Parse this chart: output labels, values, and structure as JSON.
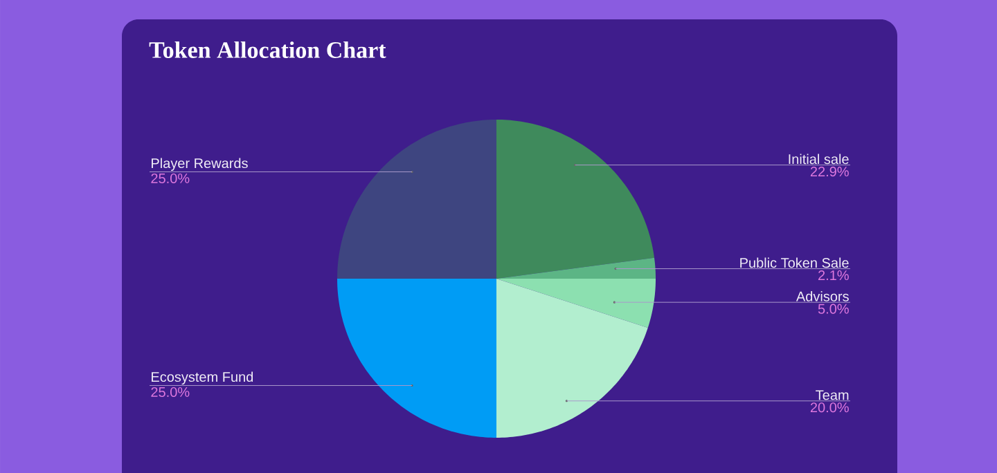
{
  "chart_data": {
    "type": "pie",
    "title": "Token Allocation Chart",
    "categories": [
      "Initial sale",
      "Public Token Sale",
      "Advisors",
      "Team",
      "Ecosystem Fund",
      "Player Rewards"
    ],
    "values": [
      22.9,
      2.1,
      5.0,
      20.0,
      25.0,
      25.0
    ],
    "colors": [
      "#3f8a5c",
      "#5cb585",
      "#8ce0b0",
      "#b2eecf",
      "#009cf5",
      "#3e4580"
    ],
    "value_labels": [
      "22.9%",
      "2.1%",
      "5.0%",
      "20.0%",
      "25.0%",
      "25.0%"
    ]
  }
}
